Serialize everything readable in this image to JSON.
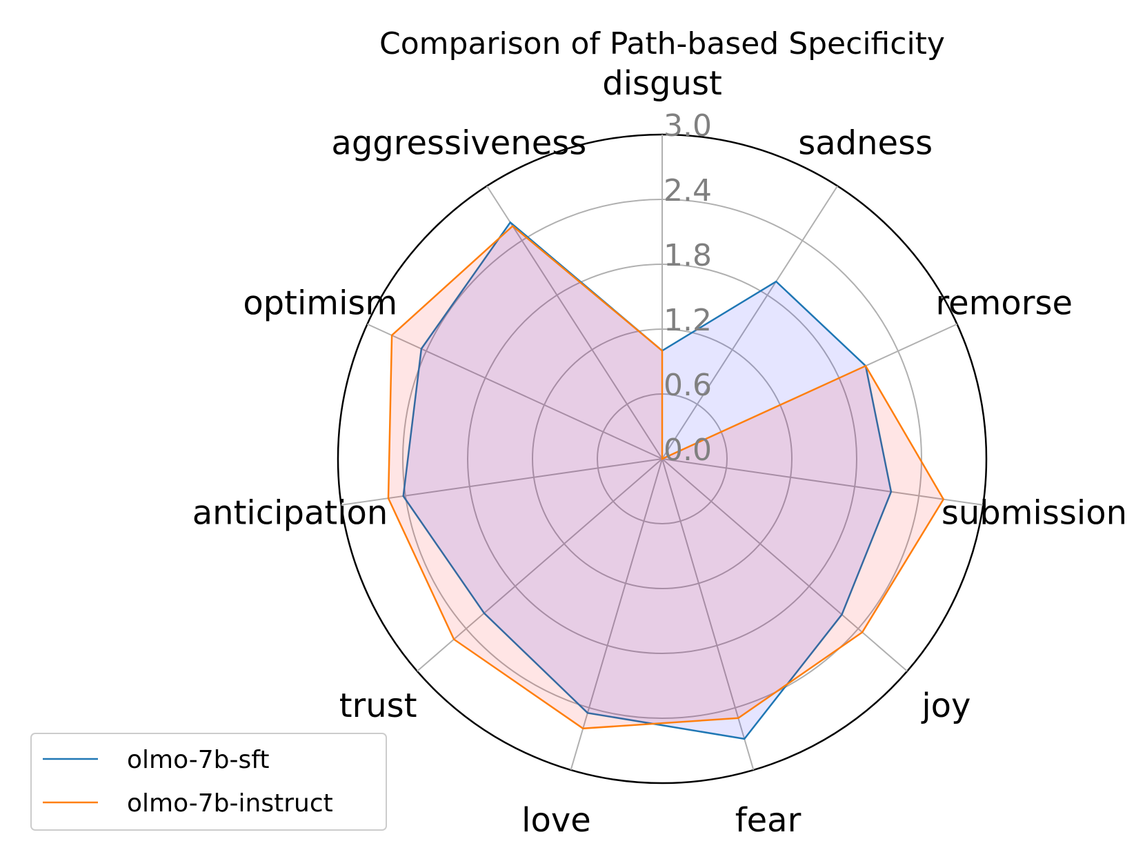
{
  "chart_data": {
    "type": "radar",
    "title": "Comparison of Path-based Specificity",
    "categories": [
      "disgust",
      "sadness",
      "remorse",
      "submission",
      "joy",
      "fear",
      "love",
      "trust",
      "anticipation",
      "optimism",
      "aggressiveness"
    ],
    "rlim": [
      0,
      3.0
    ],
    "rticks": [
      "0.0",
      "0.6",
      "1.2",
      "1.8",
      "2.4",
      "3.0"
    ],
    "grid": true,
    "legend_position": "lower-left",
    "series": [
      {
        "name": "olmo-7b-sft",
        "color": "#1f77b4",
        "fill": "#0000ff",
        "values": [
          1.0,
          1.95,
          2.07,
          2.14,
          2.2,
          2.7,
          2.45,
          2.18,
          2.42,
          2.45,
          2.6
        ]
      },
      {
        "name": "olmo-7b-instruct",
        "color": "#ff7f0e",
        "fill": "#ff0000",
        "values": [
          1.0,
          0.0,
          2.07,
          2.63,
          2.45,
          2.5,
          2.6,
          2.55,
          2.56,
          2.75,
          2.56
        ]
      }
    ]
  }
}
